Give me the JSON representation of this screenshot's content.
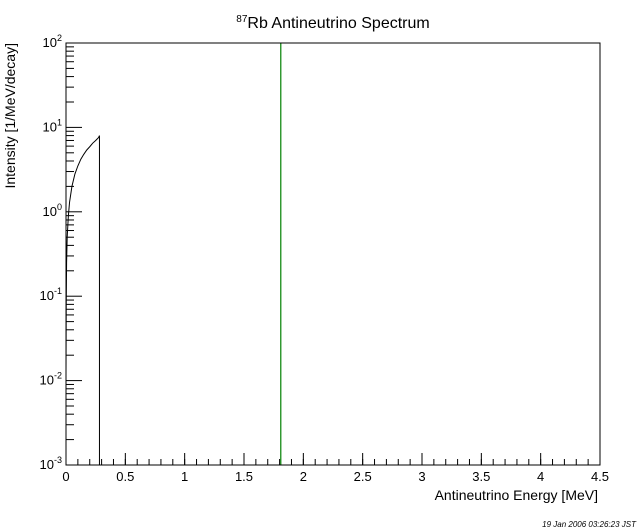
{
  "chart_data": {
    "type": "line",
    "title_superscript": "87",
    "title_main": "Rb Antineutrino Spectrum",
    "xlabel": "Antineutrino Energy [MeV]",
    "ylabel": "Intensity [1/MeV/decay]",
    "xlim": [
      0,
      4.5
    ],
    "ylim": [
      0.001,
      100
    ],
    "yscale": "log",
    "grid": false,
    "x_ticks": [
      0,
      0.5,
      1,
      1.5,
      2,
      2.5,
      3,
      3.5,
      4,
      4.5
    ],
    "x_tick_labels": [
      "0",
      "0.5",
      "1",
      "1.5",
      "2",
      "2.5",
      "3",
      "3.5",
      "4",
      "4.5"
    ],
    "y_ticks": [
      {
        "value": 0.001,
        "base": "10",
        "exp": "-3"
      },
      {
        "value": 0.01,
        "base": "10",
        "exp": "-2"
      },
      {
        "value": 0.1,
        "base": "10",
        "exp": "-1"
      },
      {
        "value": 1,
        "base": "10",
        "exp": "0"
      },
      {
        "value": 10,
        "base": "10",
        "exp": "1"
      },
      {
        "value": 100,
        "base": "10",
        "exp": "2"
      }
    ],
    "series": [
      {
        "color": "#000000",
        "x": [
          0.0,
          0.002,
          0.005,
          0.01,
          0.02,
          0.03,
          0.05,
          0.075,
          0.1,
          0.125,
          0.15,
          0.175,
          0.2,
          0.225,
          0.25,
          0.275,
          0.282,
          0.282
        ],
        "y": [
          0.012,
          0.08,
          0.25,
          0.5,
          0.9,
          1.3,
          2.0,
          2.8,
          3.5,
          4.2,
          4.8,
          5.4,
          5.9,
          6.5,
          7.0,
          7.6,
          8.0,
          0.001
        ]
      }
    ],
    "vertical_line": {
      "x": 1.81,
      "color": "#008000"
    }
  },
  "timestamp": "19 Jan 2006 03:26:23 JST"
}
